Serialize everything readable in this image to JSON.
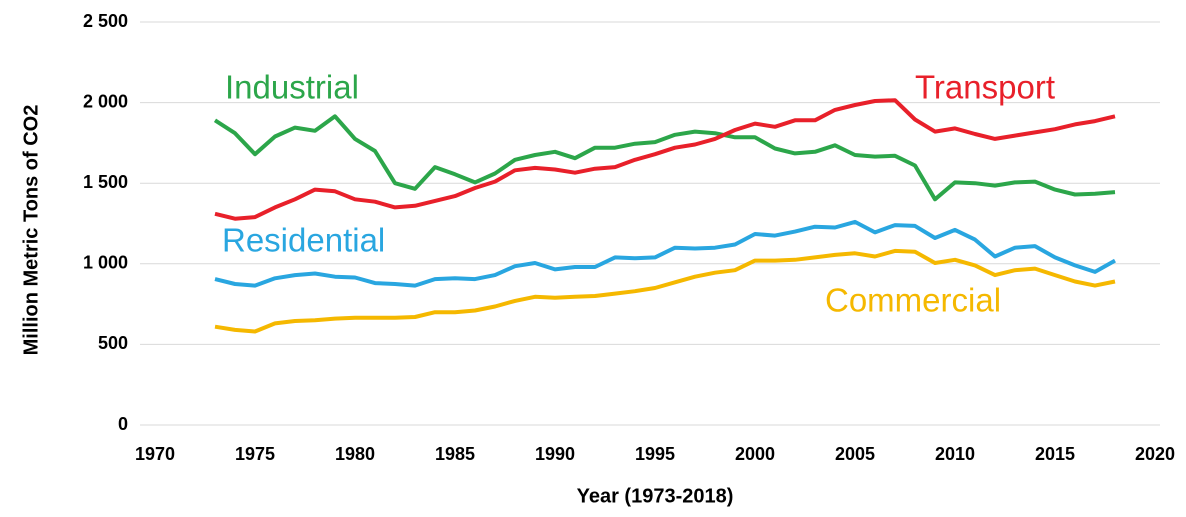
{
  "chart_data": {
    "type": "line",
    "x_label": "Year (1973-2018)",
    "y_label": "Million Metric Tons of CO2",
    "x": [
      1973,
      1974,
      1975,
      1976,
      1977,
      1978,
      1979,
      1980,
      1981,
      1982,
      1983,
      1984,
      1985,
      1986,
      1987,
      1988,
      1989,
      1990,
      1991,
      1992,
      1993,
      1994,
      1995,
      1996,
      1997,
      1998,
      1999,
      2000,
      2001,
      2002,
      2003,
      2004,
      2005,
      2006,
      2007,
      2008,
      2009,
      2010,
      2011,
      2012,
      2013,
      2014,
      2015,
      2016,
      2017,
      2018
    ],
    "series": [
      {
        "name": "Industrial",
        "color": "#2ca64a",
        "values": [
          1890,
          1810,
          1680,
          1790,
          1845,
          1825,
          1915,
          1775,
          1700,
          1500,
          1465,
          1600,
          1555,
          1505,
          1560,
          1645,
          1675,
          1695,
          1655,
          1720,
          1720,
          1745,
          1755,
          1800,
          1820,
          1810,
          1785,
          1785,
          1715,
          1685,
          1695,
          1735,
          1675,
          1665,
          1670,
          1610,
          1400,
          1505,
          1500,
          1485,
          1505,
          1510,
          1460,
          1430,
          1435,
          1445
        ]
      },
      {
        "name": "Transport",
        "color": "#e8202a",
        "values": [
          1310,
          1280,
          1290,
          1350,
          1400,
          1460,
          1450,
          1400,
          1385,
          1350,
          1360,
          1390,
          1420,
          1470,
          1510,
          1580,
          1595,
          1585,
          1565,
          1590,
          1600,
          1645,
          1680,
          1720,
          1740,
          1775,
          1830,
          1870,
          1850,
          1890,
          1890,
          1955,
          1985,
          2010,
          2015,
          1895,
          1820,
          1840,
          1805,
          1775,
          1795,
          1815,
          1835,
          1865,
          1885,
          1915
        ]
      },
      {
        "name": "Residential",
        "color": "#29a6e0",
        "values": [
          905,
          875,
          865,
          910,
          930,
          940,
          920,
          915,
          880,
          875,
          865,
          905,
          910,
          905,
          930,
          985,
          1005,
          965,
          980,
          980,
          1040,
          1035,
          1040,
          1100,
          1095,
          1100,
          1120,
          1185,
          1175,
          1200,
          1230,
          1225,
          1260,
          1195,
          1240,
          1235,
          1160,
          1210,
          1150,
          1045,
          1100,
          1110,
          1040,
          990,
          950,
          1020
        ]
      },
      {
        "name": "Commercial",
        "color": "#f5b800",
        "values": [
          610,
          590,
          580,
          630,
          645,
          650,
          660,
          665,
          665,
          665,
          670,
          700,
          700,
          710,
          735,
          770,
          795,
          790,
          795,
          800,
          815,
          830,
          850,
          885,
          920,
          945,
          960,
          1020,
          1020,
          1025,
          1040,
          1055,
          1065,
          1045,
          1080,
          1075,
          1005,
          1025,
          990,
          930,
          960,
          970,
          930,
          890,
          865,
          890
        ]
      }
    ],
    "xlim": [
      1970,
      2020
    ],
    "xticks": [
      1970,
      1975,
      1980,
      1985,
      1990,
      1995,
      2000,
      2005,
      2010,
      2015,
      2020
    ],
    "ylim": [
      0,
      2500
    ],
    "yticks": [
      0,
      500,
      {
        "value": 1000,
        "label": "1 000"
      },
      {
        "value": 1500,
        "label": "1 500"
      },
      {
        "value": 2000,
        "label": "2 000"
      },
      {
        "value": 2500,
        "label": "2 500"
      }
    ],
    "grid": true
  }
}
